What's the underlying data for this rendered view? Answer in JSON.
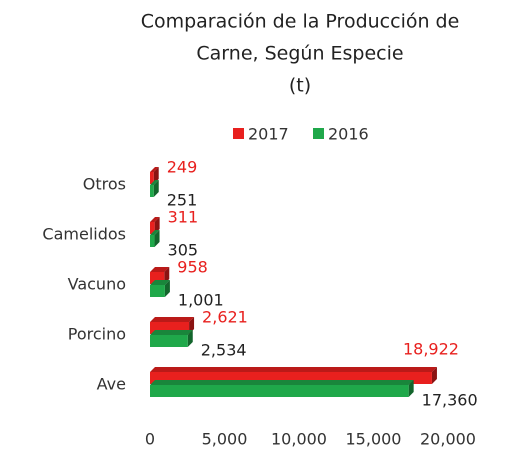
{
  "chart_data": {
    "type": "bar",
    "orientation": "horizontal",
    "title": [
      "Comparación de la Producción de",
      "Carne, Según Especie",
      "(t)"
    ],
    "categories": [
      "Otros",
      "Camelidos",
      "Vacuno",
      "Porcino",
      "Ave"
    ],
    "series": [
      {
        "name": "2017",
        "color": "#e8201e",
        "values": [
          249,
          311,
          958,
          2621,
          18922
        ],
        "value_labels": [
          "249",
          "311",
          "958",
          "2,621",
          "18,922"
        ]
      },
      {
        "name": "2016",
        "color": "#1fa84a",
        "values": [
          251,
          305,
          1001,
          2534,
          17360
        ],
        "value_labels": [
          "251",
          "305",
          "1,001",
          "2,534",
          "17,360"
        ]
      }
    ],
    "xlim": [
      0,
      20000
    ],
    "xticks": [
      0,
      {
        "value": 5000,
        "label": "5,000"
      },
      {
        "value": 10000,
        "label": "10,000"
      },
      {
        "value": 15000,
        "label": "15,000"
      },
      {
        "value": 20000,
        "label": "20,000"
      }
    ],
    "legend": "top",
    "grid": false
  }
}
